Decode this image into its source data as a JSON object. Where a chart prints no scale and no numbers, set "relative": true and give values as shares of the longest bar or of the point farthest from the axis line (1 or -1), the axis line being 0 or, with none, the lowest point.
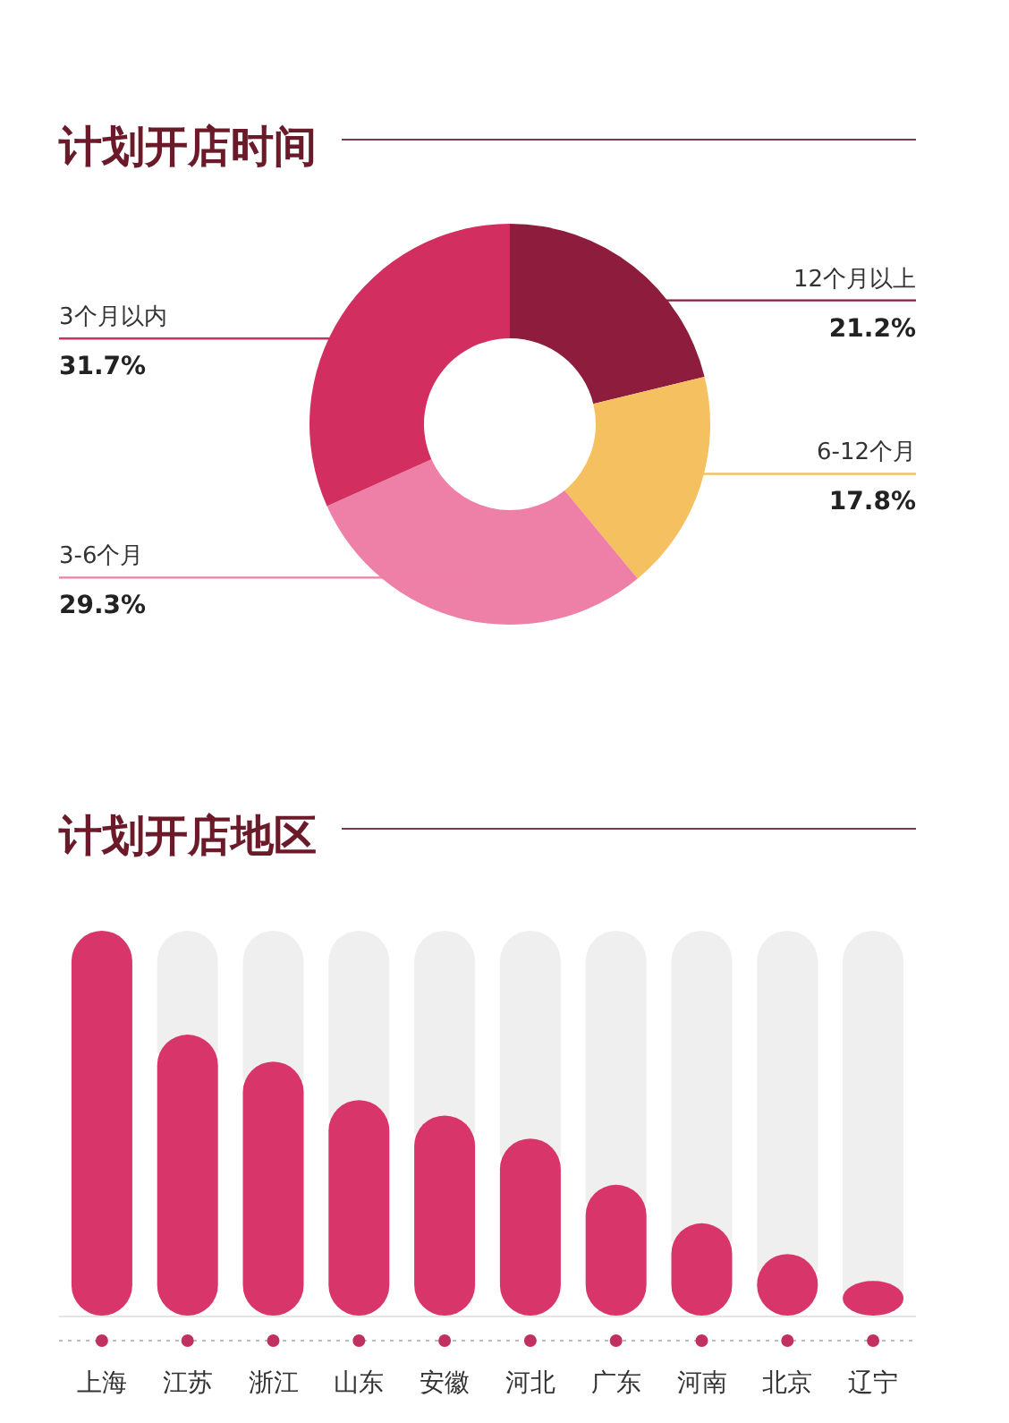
{
  "chart_data": [
    {
      "type": "donut",
      "title": "计划开店时间",
      "categories": [
        "12个月以上",
        "6-12个月",
        "3-6个月",
        "3个月以内"
      ],
      "values": [
        21.2,
        17.8,
        29.3,
        31.7
      ],
      "value_labels": [
        "21.2%",
        "17.8%",
        "29.3%",
        "31.7%"
      ],
      "colors": [
        "#8e1c3c",
        "#f5c060",
        "#ee7fa6",
        "#d32e60"
      ]
    },
    {
      "type": "bar",
      "title": "计划开店地区",
      "relative": true,
      "categories": [
        "上海",
        "江苏",
        "浙江",
        "山东",
        "安徽",
        "河北",
        "广东",
        "河南",
        "北京",
        "辽宁"
      ],
      "values": [
        1,
        0.73,
        0.66,
        0.56,
        0.52,
        0.46,
        0.34,
        0.24,
        0.16,
        0.09
      ],
      "color": "#d8366a"
    }
  ]
}
